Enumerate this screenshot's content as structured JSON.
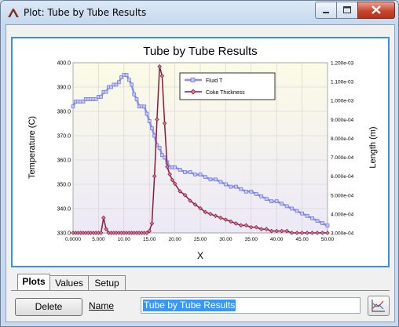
{
  "window": {
    "title": "Plot: Tube by Tube Results",
    "controls": [
      "minimize",
      "maximize",
      "close"
    ]
  },
  "tabs": [
    {
      "label": "Plots",
      "active": true
    },
    {
      "label": "Values",
      "active": false
    },
    {
      "label": "Setup",
      "active": false
    }
  ],
  "delete_label": "Delete",
  "name_label": "Name",
  "name_value": "Tube by Tube Results",
  "chart_data": {
    "type": "line",
    "title": "Tube by Tube Results",
    "xlabel": "X",
    "ylabel_left": "Temperature (C)",
    "ylabel_right": "Length (m)",
    "xlim": [
      0,
      50
    ],
    "ylim_left": [
      330,
      400
    ],
    "ylim_right": [
      0.0003,
      0.0012
    ],
    "x_ticks": [
      "0.0000",
      "5.000",
      "10.00",
      "15.00",
      "20.00",
      "25.00",
      "30.00",
      "35.00",
      "40.00",
      "45.00",
      "50.00"
    ],
    "y_left_ticks": [
      "330.0",
      "340.0",
      "350.0",
      "360.0",
      "370.0",
      "380.0",
      "390.0",
      "400.0"
    ],
    "y_right_ticks": [
      "3.000e-04",
      "4.000e-04",
      "5.000e-04",
      "6.000e-04",
      "7.000e-04",
      "8.000e-04",
      "9.000e-04",
      "1.000e-03",
      "1.100e-03",
      "1.200e-03"
    ],
    "grid": true,
    "legend_position": "top-right",
    "series": [
      {
        "name": "Fluid T",
        "axis": "left",
        "color": "#8a8ee8",
        "x": [
          0,
          0.5,
          1,
          1.5,
          2,
          2.5,
          3,
          3.5,
          4,
          4.5,
          5,
          5.5,
          6,
          6.5,
          7,
          7.5,
          8,
          8.5,
          9,
          9.5,
          10,
          10.5,
          11,
          11.5,
          12,
          12.5,
          13,
          13.5,
          14,
          14.5,
          15,
          15.5,
          16,
          16.5,
          17,
          17.5,
          18,
          18.5,
          19,
          19.5,
          20,
          21,
          22,
          23,
          24,
          25,
          26,
          27,
          28,
          29,
          30,
          31,
          32,
          33,
          34,
          35,
          36,
          37,
          38,
          39,
          40,
          41,
          42,
          43,
          44,
          45,
          46,
          47,
          48,
          49,
          50
        ],
        "y": [
          382,
          384,
          384,
          384,
          384,
          385,
          385,
          385,
          385,
          385,
          386,
          386,
          388,
          388,
          390,
          390,
          391,
          391,
          392,
          394,
          395,
          395,
          393,
          391,
          387,
          385,
          382,
          382,
          382,
          379,
          376,
          373,
          370,
          366,
          365,
          362,
          361,
          359,
          357,
          357,
          357,
          356,
          355,
          355,
          354,
          354,
          353,
          352,
          352,
          351,
          350,
          349,
          349,
          348,
          347,
          347,
          346,
          345,
          344,
          343,
          343,
          342,
          341,
          340,
          339,
          338,
          337,
          336,
          335,
          334,
          333
        ]
      },
      {
        "name": "Coke Thickness",
        "axis": "right",
        "color": "#8b1a3c",
        "x": [
          0,
          0.5,
          1,
          1.5,
          2,
          2.5,
          3,
          3.5,
          4,
          4.5,
          5,
          5.5,
          6,
          6.5,
          7,
          7.5,
          8,
          8.5,
          9,
          9.5,
          10,
          10.5,
          11,
          11.5,
          12,
          12.5,
          13,
          13.5,
          14,
          14.5,
          15,
          15.5,
          16,
          16.5,
          17,
          17.5,
          18,
          18.5,
          19,
          19.5,
          20,
          21,
          22,
          23,
          24,
          25,
          26,
          27,
          28,
          29,
          30,
          31,
          32,
          33,
          34,
          35,
          36,
          37,
          38,
          39,
          40,
          41,
          42,
          43,
          44,
          45,
          46,
          47,
          48,
          49,
          50
        ],
        "y": [
          0.0003,
          0.0003,
          0.0003,
          0.0003,
          0.0003,
          0.0003,
          0.0003,
          0.0003,
          0.0003,
          0.0003,
          0.0003,
          0.0003,
          0.00038,
          0.00032,
          0.0003,
          0.0003,
          0.0003,
          0.0003,
          0.0003,
          0.0003,
          0.0003,
          0.0003,
          0.0003,
          0.0003,
          0.0003,
          0.0003,
          0.0003,
          0.0003,
          0.0003,
          0.0003,
          0.00031,
          0.00035,
          0.0006,
          0.0009,
          0.00118,
          0.00113,
          0.00088,
          0.00065,
          0.00061,
          0.00058,
          0.00056,
          0.00052,
          0.0005,
          0.00047,
          0.00045,
          0.00043,
          0.00041,
          0.0004,
          0.00039,
          0.00038,
          0.00037,
          0.00036,
          0.00035,
          0.00034,
          0.00034,
          0.00033,
          0.00033,
          0.00032,
          0.00032,
          0.00031,
          0.00031,
          0.00031,
          0.00031,
          0.0003,
          0.0003,
          0.0003,
          0.0003,
          0.0003,
          0.0003,
          0.0003,
          0.0003
        ]
      }
    ]
  }
}
